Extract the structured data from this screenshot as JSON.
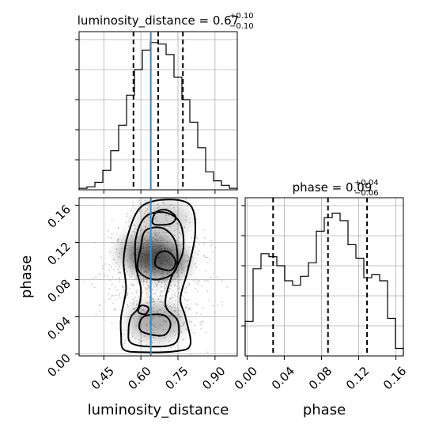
{
  "chart_data": {
    "type": "corner",
    "parameters": [
      "luminosity_distance",
      "phase"
    ],
    "titles": [
      {
        "name": "luminosity_distance",
        "value": "0.67",
        "plus": "+0.10",
        "minus": "−0.10"
      },
      {
        "name": "phase",
        "value": "0.09",
        "plus": "+0.04",
        "minus": "−0.06"
      }
    ],
    "truths": {
      "luminosity_distance": 0.64
    },
    "quantiles": {
      "luminosity_distance": [
        0.57,
        0.67,
        0.77
      ],
      "phase": [
        0.028,
        0.087,
        0.129
      ]
    },
    "ranges": {
      "luminosity_distance": [
        0.35,
        0.99
      ],
      "phase": [
        -0.002,
        0.168
      ]
    },
    "histograms": {
      "luminosity_distance": {
        "bin_edges": [
          0.35,
          0.382,
          0.414,
          0.446,
          0.478,
          0.51,
          0.542,
          0.574,
          0.606,
          0.638,
          0.67,
          0.702,
          0.734,
          0.766,
          0.798,
          0.83,
          0.862,
          0.894,
          0.926,
          0.958,
          0.99
        ],
        "counts": [
          0.01,
          0.02,
          0.05,
          0.13,
          0.26,
          0.43,
          0.63,
          0.8,
          0.93,
          0.98,
          0.97,
          0.9,
          0.75,
          0.6,
          0.45,
          0.28,
          0.12,
          0.06,
          0.03,
          0.01
        ]
      },
      "phase": {
        "bin_edges": [
          -0.002,
          0.0065,
          0.015,
          0.0235,
          0.032,
          0.0405,
          0.049,
          0.0575,
          0.066,
          0.0745,
          0.083,
          0.0915,
          0.1,
          0.1085,
          0.117,
          0.1255,
          0.134,
          0.1425,
          0.151,
          0.1595,
          0.168
        ],
        "counts": [
          0.23,
          0.58,
          0.68,
          0.66,
          0.6,
          0.5,
          0.47,
          0.53,
          0.62,
          0.83,
          0.92,
          0.95,
          0.9,
          0.74,
          0.65,
          0.52,
          0.54,
          0.5,
          0.25,
          0.05
        ]
      }
    },
    "contour_2d": {
      "x": "luminosity_distance",
      "y": "phase",
      "levels": [
        {
          "level": "outer",
          "points": [
            [
              0.53,
              0.005
            ],
            [
              0.6,
              0.002
            ],
            [
              0.74,
              0.003
            ],
            [
              0.8,
              0.01
            ],
            [
              0.78,
              0.04
            ],
            [
              0.76,
              0.06
            ],
            [
              0.79,
              0.09
            ],
            [
              0.82,
              0.13
            ],
            [
              0.8,
              0.16
            ],
            [
              0.7,
              0.166
            ],
            [
              0.6,
              0.158
            ],
            [
              0.55,
              0.13
            ],
            [
              0.53,
              0.1
            ],
            [
              0.54,
              0.07
            ],
            [
              0.52,
              0.04
            ],
            [
              0.52,
              0.02
            ]
          ]
        },
        {
          "level": "middle",
          "points": [
            [
              0.56,
              0.012
            ],
            [
              0.64,
              0.008
            ],
            [
              0.74,
              0.012
            ],
            [
              0.75,
              0.035
            ],
            [
              0.7,
              0.052
            ],
            [
              0.72,
              0.08
            ],
            [
              0.77,
              0.11
            ],
            [
              0.76,
              0.14
            ],
            [
              0.7,
              0.152
            ],
            [
              0.62,
              0.148
            ],
            [
              0.58,
              0.125
            ],
            [
              0.58,
              0.095
            ],
            [
              0.6,
              0.07
            ],
            [
              0.59,
              0.05
            ],
            [
              0.56,
              0.04
            ],
            [
              0.55,
              0.025
            ]
          ]
        },
        {
          "level": "inner-upper",
          "points": [
            [
              0.59,
              0.09
            ],
            [
              0.66,
              0.08
            ],
            [
              0.74,
              0.09
            ],
            [
              0.74,
              0.12
            ],
            [
              0.69,
              0.135
            ],
            [
              0.62,
              0.133
            ],
            [
              0.6,
              0.115
            ]
          ]
        },
        {
          "level": "inner-lower",
          "points": [
            [
              0.6,
              0.025
            ],
            [
              0.69,
              0.02
            ],
            [
              0.72,
              0.032
            ],
            [
              0.69,
              0.042
            ],
            [
              0.61,
              0.04
            ]
          ]
        },
        {
          "level": "blob-top",
          "points": [
            [
              0.65,
              0.14
            ],
            [
              0.72,
              0.14
            ],
            [
              0.74,
              0.148
            ],
            [
              0.7,
              0.155
            ],
            [
              0.66,
              0.152
            ]
          ]
        },
        {
          "level": "blob-core",
          "points": [
            [
              0.66,
              0.095
            ],
            [
              0.72,
              0.09
            ],
            [
              0.74,
              0.1
            ],
            [
              0.71,
              0.11
            ],
            [
              0.67,
              0.108
            ]
          ]
        },
        {
          "level": "blob-lowmid",
          "points": [
            [
              0.59,
              0.045
            ],
            [
              0.62,
              0.043
            ],
            [
              0.63,
              0.05
            ],
            [
              0.6,
              0.052
            ]
          ]
        }
      ],
      "density_peaks": [
        {
          "x": 0.68,
          "y": 0.1,
          "weight": 1.0
        },
        {
          "x": 0.62,
          "y": 0.11,
          "weight": 0.7
        },
        {
          "x": 0.66,
          "y": 0.035,
          "weight": 0.6
        },
        {
          "x": 0.69,
          "y": 0.145,
          "weight": 0.35
        }
      ]
    },
    "axes": {
      "x_ticks": {
        "luminosity_distance": [
          "0.45",
          "0.60",
          "0.75",
          "0.90"
        ],
        "phase": [
          "0.00",
          "0.04",
          "0.08",
          "0.12",
          "0.16"
        ]
      },
      "x_tick_values": {
        "luminosity_distance": [
          0.45,
          0.6,
          0.75,
          0.9
        ],
        "phase": [
          0.0,
          0.04,
          0.08,
          0.12,
          0.16
        ]
      },
      "y_ticks": {
        "phase": [
          "0.00",
          "0.04",
          "0.08",
          "0.12",
          "0.16"
        ]
      },
      "y_tick_values": {
        "phase": [
          0.0,
          0.04,
          0.08,
          0.12,
          0.16
        ]
      }
    },
    "xlabels": [
      "luminosity_distance",
      "phase"
    ],
    "ylabel": "phase",
    "grid": true,
    "colors": {
      "truth": "#4682b4",
      "line": "#000000",
      "scatter": "#9a9a9a"
    }
  }
}
